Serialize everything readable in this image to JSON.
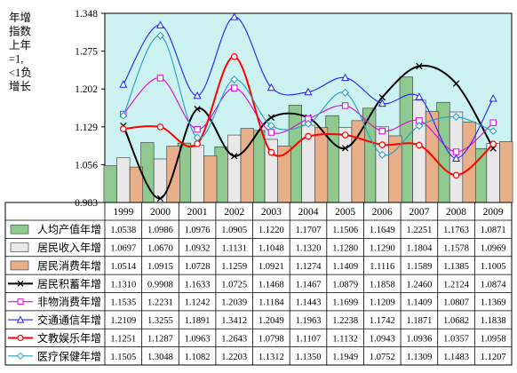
{
  "chart_data": {
    "type": "bar",
    "title": "",
    "ylabel": "年增指数上年=1,<1负增长",
    "ylabel_lines": [
      "年增",
      "指数",
      "上年",
      "=1,",
      "<1负",
      "增长"
    ],
    "ylim": [
      0.983,
      1.348
    ],
    "yticks": [
      "1.348",
      "1.275",
      "1.202",
      "1.129",
      "1.056",
      "0.983"
    ],
    "categories": [
      "1999",
      "2000",
      "2001",
      "2002",
      "2003",
      "2004",
      "2005",
      "2006",
      "2007",
      "2008",
      "2009"
    ],
    "series": [
      {
        "name": "人均产值年增",
        "kind": "bar",
        "color": "#8fc98f",
        "values": [
          1.0538,
          1.0986,
          1.0976,
          1.0905,
          1.122,
          1.1707,
          1.1506,
          1.1649,
          1.2251,
          1.1763,
          1.0871
        ]
      },
      {
        "name": "居民收入年增",
        "kind": "bar",
        "color": "#e9e9e9",
        "values": [
          1.0697,
          1.067,
          1.0932,
          1.1131,
          1.1048,
          1.132,
          1.128,
          1.129,
          1.1804,
          1.1578,
          1.0969
        ]
      },
      {
        "name": "居民消费年增",
        "kind": "bar",
        "color": "#e8b08a",
        "values": [
          1.0514,
          1.0915,
          1.0728,
          1.1259,
          1.0921,
          1.1274,
          1.1409,
          1.1116,
          1.1589,
          1.1385,
          1.1005
        ]
      },
      {
        "name": "居民积蓄年增",
        "kind": "line",
        "color": "#000000",
        "marker": "x",
        "values": [
          1.131,
          0.9908,
          1.1633,
          1.0725,
          1.1468,
          1.1467,
          1.0879,
          1.1858,
          1.246,
          1.2124,
          1.0874
        ]
      },
      {
        "name": "非物消费年增",
        "kind": "line",
        "color": "#e000e0",
        "marker": "square",
        "values": [
          1.1535,
          1.2231,
          1.1242,
          1.2039,
          1.1184,
          1.1443,
          1.1699,
          1.1209,
          1.1409,
          1.0807,
          1.1369
        ]
      },
      {
        "name": "交通通信年增",
        "kind": "line",
        "color": "#2020ff",
        "marker": "triangle",
        "values": [
          1.2109,
          1.3255,
          1.1891,
          1.3412,
          1.2049,
          1.1963,
          1.2238,
          1.1742,
          1.1871,
          1.0682,
          1.1838
        ]
      },
      {
        "name": "文教娱乐年增",
        "kind": "line",
        "color": "#ff0000",
        "marker": "circle",
        "values": [
          1.1251,
          1.1287,
          1.0963,
          1.2643,
          1.0798,
          1.1107,
          1.1132,
          1.0943,
          1.0936,
          1.0357,
          1.0958
        ]
      },
      {
        "name": "医疗保健年增",
        "kind": "line",
        "color": "#20a0c0",
        "marker": "diamond",
        "values": [
          1.1505,
          1.3048,
          1.1082,
          1.2203,
          1.1312,
          1.135,
          1.1949,
          1.0752,
          1.1309,
          1.1483,
          1.1207
        ]
      }
    ],
    "table_rows": [
      {
        "label": "人均产值年增",
        "cells": [
          "1.0538",
          "1.0986",
          "1.0976",
          "1.0905",
          "1.1220",
          "1.1707",
          "1.1506",
          "1.1649",
          "1.2251",
          "1.1763",
          "1.0871"
        ]
      },
      {
        "label": "居民收入年增",
        "cells": [
          "1.0697",
          "1.0670",
          "1.0932",
          "1.1131",
          "1.1048",
          "1.1320",
          "1.1280",
          "1.1290",
          "1.1804",
          "1.1578",
          "1.0969"
        ]
      },
      {
        "label": "居民消费年增",
        "cells": [
          "1.0514",
          "1.0915",
          "1.0728",
          "1.1259",
          "1.0921",
          "1.1274",
          "1.1409",
          "1.1116",
          "1.1589",
          "1.1385",
          "1.1005"
        ]
      },
      {
        "label": "居民积蓄年增",
        "cells": [
          "1.1310",
          "0.9908",
          "1.1633",
          "1.0725",
          "1.1468",
          "1.1467",
          "1.0879",
          "1.1858",
          "1.2460",
          "1.2124",
          "1.0874"
        ]
      },
      {
        "label": "非物消费年增",
        "cells": [
          "1.1535",
          "1.2231",
          "1.1242",
          "1.2039",
          "1.1184",
          "1.1443",
          "1.1699",
          "1.1209",
          "1.1409",
          "1.0807",
          "1.1369"
        ]
      },
      {
        "label": "交通通信年增",
        "cells": [
          "1.2109",
          "1.3255",
          "1.1891",
          "1.3412",
          "1.2049",
          "1.1963",
          "1.2238",
          "1.1742",
          "1.1871",
          "1.0682",
          "1.1838"
        ]
      },
      {
        "label": "文教娱乐年增",
        "cells": [
          "1.1251",
          "1.1287",
          "1.0963",
          "1.2643",
          "1.0798",
          "1.1107",
          "1.1132",
          "1.0943",
          "1.0936",
          "1.0357",
          "1.0958"
        ]
      },
      {
        "label": "医疗保健年增",
        "cells": [
          "1.1505",
          "1.3048",
          "1.1082",
          "1.2203",
          "1.1312",
          "1.1350",
          "1.1949",
          "1.0752",
          "1.1309",
          "1.1483",
          "1.1207"
        ]
      }
    ],
    "grid": false,
    "legend": "data-table",
    "colors": {
      "plot_background": "#ccf2f2",
      "page_background": "#ffffff"
    }
  }
}
